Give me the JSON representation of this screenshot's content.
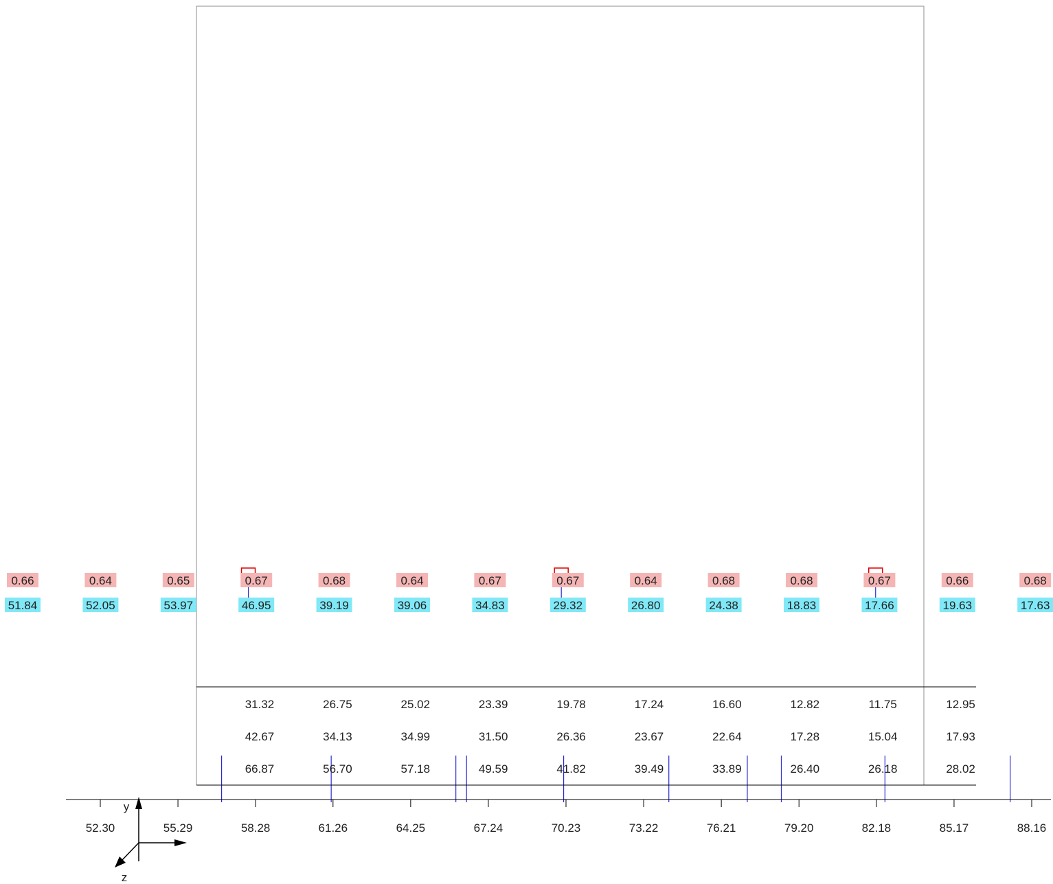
{
  "colors": {
    "frame": "#8c8c8c",
    "line": "#000000",
    "marker": "#2a2ad0",
    "flag": "#e00000",
    "ratio_bg": "#f5b5b5",
    "value_bg": "#80e8f6"
  },
  "label_columns": [
    {
      "ratio": "0.66",
      "value": "51.84"
    },
    {
      "ratio": "0.64",
      "value": "52.05"
    },
    {
      "ratio": "0.65",
      "value": "53.97"
    },
    {
      "ratio": "0.67",
      "value": "46.95",
      "flagged": true
    },
    {
      "ratio": "0.68",
      "value": "39.19"
    },
    {
      "ratio": "0.64",
      "value": "39.06"
    },
    {
      "ratio": "0.67",
      "value": "34.83"
    },
    {
      "ratio": "0.67",
      "value": "29.32",
      "flagged": true
    },
    {
      "ratio": "0.64",
      "value": "26.80"
    },
    {
      "ratio": "0.68",
      "value": "24.38"
    },
    {
      "ratio": "0.68",
      "value": "18.83"
    },
    {
      "ratio": "0.67",
      "value": "17.66",
      "flagged": true
    },
    {
      "ratio": "0.66",
      "value": "19.63"
    },
    {
      "ratio": "0.68",
      "value": "17.63"
    }
  ],
  "table_rows": [
    [
      "31.32",
      "26.75",
      "25.02",
      "23.39",
      "19.78",
      "17.24",
      "16.60",
      "12.82",
      "11.75",
      "12.95"
    ],
    [
      "42.67",
      "34.13",
      "34.99",
      "31.50",
      "26.36",
      "23.67",
      "22.64",
      "17.28",
      "15.04",
      "17.93"
    ],
    [
      "66.87",
      "56.70",
      "57.18",
      "49.59",
      "41.82",
      "39.49",
      "33.89",
      "26.40",
      "26.18",
      "28.02"
    ]
  ],
  "axis_ticks": [
    "52.30",
    "55.29",
    "58.28",
    "61.26",
    "64.25",
    "67.24",
    "70.23",
    "73.22",
    "76.21",
    "79.20",
    "82.18",
    "85.17",
    "88.16"
  ],
  "axis_markers": [
    "56.97",
    "61.19",
    "65.99",
    "66.40",
    "70.14",
    "74.19",
    "77.21",
    "78.52",
    "82.51",
    "87.33"
  ],
  "label_markers": [
    "58.00",
    "70.05",
    "82.15"
  ],
  "coord_axes": {
    "y": "y",
    "z": "z"
  }
}
